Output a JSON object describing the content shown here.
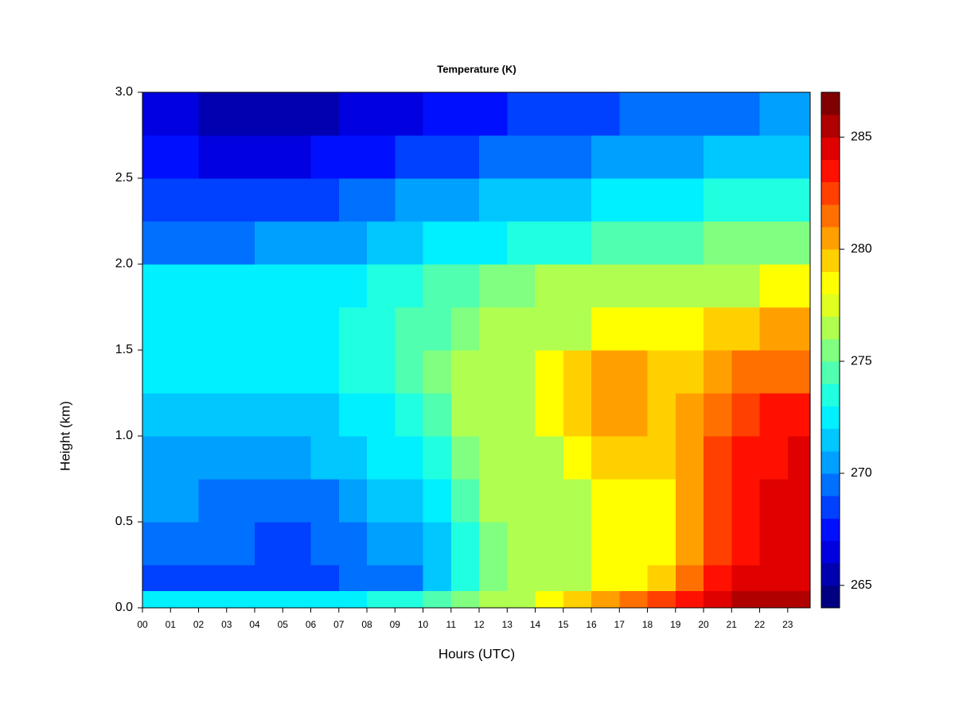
{
  "chart_data": {
    "type": "heatmap",
    "title": "Temperature (K)",
    "x_label": "Hours (UTC)",
    "y_label": "Height (km)",
    "xlim": [
      0,
      23.8
    ],
    "ylim": [
      0,
      3
    ],
    "xticks": [
      {
        "value": 0,
        "label": "00"
      },
      {
        "value": 1,
        "label": "01"
      },
      {
        "value": 2,
        "label": "02"
      },
      {
        "value": 3,
        "label": "03"
      },
      {
        "value": 4,
        "label": "04"
      },
      {
        "value": 5,
        "label": "05"
      },
      {
        "value": 6,
        "label": "06"
      },
      {
        "value": 7,
        "label": "07"
      },
      {
        "value": 8,
        "label": "08"
      },
      {
        "value": 9,
        "label": "09"
      },
      {
        "value": 10,
        "label": "10"
      },
      {
        "value": 11,
        "label": "11"
      },
      {
        "value": 12,
        "label": "12"
      },
      {
        "value": 13,
        "label": "13"
      },
      {
        "value": 14,
        "label": "14"
      },
      {
        "value": 15,
        "label": "15"
      },
      {
        "value": 16,
        "label": "16"
      },
      {
        "value": 17,
        "label": "17"
      },
      {
        "value": 18,
        "label": "18"
      },
      {
        "value": 19,
        "label": "19"
      },
      {
        "value": 20,
        "label": "20"
      },
      {
        "value": 21,
        "label": "21"
      },
      {
        "value": 22,
        "label": "22"
      },
      {
        "value": 23,
        "label": "23"
      }
    ],
    "yticks": [
      {
        "value": 0,
        "label": "0.0"
      },
      {
        "value": 0.5,
        "label": "0.5"
      },
      {
        "value": 1,
        "label": "1.0"
      },
      {
        "value": 1.5,
        "label": "1.5"
      },
      {
        "value": 2,
        "label": "2.0"
      },
      {
        "value": 2.5,
        "label": "2.5"
      },
      {
        "value": 3,
        "label": "3.0"
      }
    ],
    "zlim": [
      264,
      287
    ],
    "zticks": [
      265,
      270,
      275,
      280,
      285
    ],
    "colors": [
      "#000080",
      "#0000b0",
      "#0000e0",
      "#0010ff",
      "#0040ff",
      "#0070ff",
      "#00a0ff",
      "#00c8ff",
      "#00f0ff",
      "#20ffe0",
      "#50ffb0",
      "#80ff80",
      "#b0ff50",
      "#e0ff20",
      "#ffff00",
      "#ffd000",
      "#ffa000",
      "#ff7000",
      "#ff4000",
      "#ff1000",
      "#e00000",
      "#b00000",
      "#800000"
    ],
    "x": [
      0,
      1,
      2,
      3,
      4,
      5,
      6,
      7,
      8,
      9,
      10,
      11,
      12,
      13,
      14,
      15,
      16,
      17,
      18,
      19,
      20,
      21,
      22,
      23
    ],
    "y": [
      0,
      0.1,
      0.25,
      0.5,
      0.75,
      1.0,
      1.25,
      1.5,
      1.75,
      2.0,
      2.25,
      2.5,
      2.75
    ],
    "z": [
      [
        272,
        272,
        272,
        272,
        272,
        272,
        272,
        272,
        273,
        273,
        274,
        275,
        276,
        277,
        278,
        279,
        280,
        281,
        282,
        283,
        284,
        285,
        285,
        285
      ],
      [
        268,
        268,
        268,
        268,
        268,
        268,
        268,
        269,
        269,
        269,
        271,
        273,
        275,
        276,
        277,
        277,
        278,
        278,
        279,
        281,
        283,
        284,
        284,
        284
      ],
      [
        269,
        269,
        269,
        269,
        268,
        268,
        269,
        269,
        270,
        270,
        271,
        273,
        275,
        276,
        277,
        277,
        278,
        278,
        278,
        280,
        282,
        283,
        284,
        284
      ],
      [
        270,
        270,
        269,
        269,
        269,
        269,
        269,
        270,
        271,
        271,
        272,
        274,
        276,
        277,
        277,
        277,
        278,
        278,
        278,
        280,
        282,
        283,
        284,
        284
      ],
      [
        270,
        270,
        270,
        270,
        270,
        270,
        271,
        271,
        272,
        272,
        273,
        275,
        276,
        277,
        277,
        278,
        279,
        279,
        279,
        280,
        282,
        283,
        283,
        284
      ],
      [
        271,
        271,
        271,
        271,
        271,
        271,
        271,
        272,
        272,
        273,
        274,
        276,
        277,
        277,
        278,
        279,
        280,
        280,
        279,
        280,
        281,
        282,
        283,
        283
      ],
      [
        272,
        272,
        272,
        272,
        272,
        272,
        272,
        273,
        273,
        274,
        275,
        276,
        277,
        277,
        278,
        279,
        280,
        280,
        279,
        279,
        280,
        281,
        281,
        281
      ],
      [
        272,
        272,
        272,
        272,
        272,
        272,
        272,
        273,
        273,
        274,
        274,
        275,
        276,
        276,
        277,
        277,
        278,
        278,
        278,
        278,
        279,
        279,
        280,
        280
      ],
      [
        272,
        272,
        272,
        272,
        272,
        272,
        272,
        272,
        273,
        273,
        274,
        274,
        275,
        275,
        276,
        276,
        277,
        277,
        277,
        277,
        277,
        277,
        278,
        278
      ],
      [
        269,
        269,
        269,
        269,
        270,
        270,
        270,
        270,
        271,
        271,
        272,
        272,
        272,
        273,
        273,
        273,
        274,
        274,
        274,
        274,
        275,
        275,
        275,
        275
      ],
      [
        268,
        268,
        268,
        268,
        268,
        268,
        268,
        269,
        269,
        270,
        270,
        270,
        271,
        271,
        271,
        271,
        272,
        272,
        272,
        272,
        273,
        273,
        273,
        273
      ],
      [
        267,
        267,
        266,
        266,
        266,
        266,
        267,
        267,
        267,
        268,
        268,
        268,
        269,
        269,
        269,
        269,
        270,
        270,
        270,
        270,
        271,
        271,
        271,
        271
      ],
      [
        266,
        266,
        265,
        265,
        265,
        265,
        265,
        266,
        266,
        266,
        267,
        267,
        267,
        268,
        268,
        268,
        268,
        269,
        269,
        269,
        269,
        269,
        270,
        270
      ]
    ]
  }
}
